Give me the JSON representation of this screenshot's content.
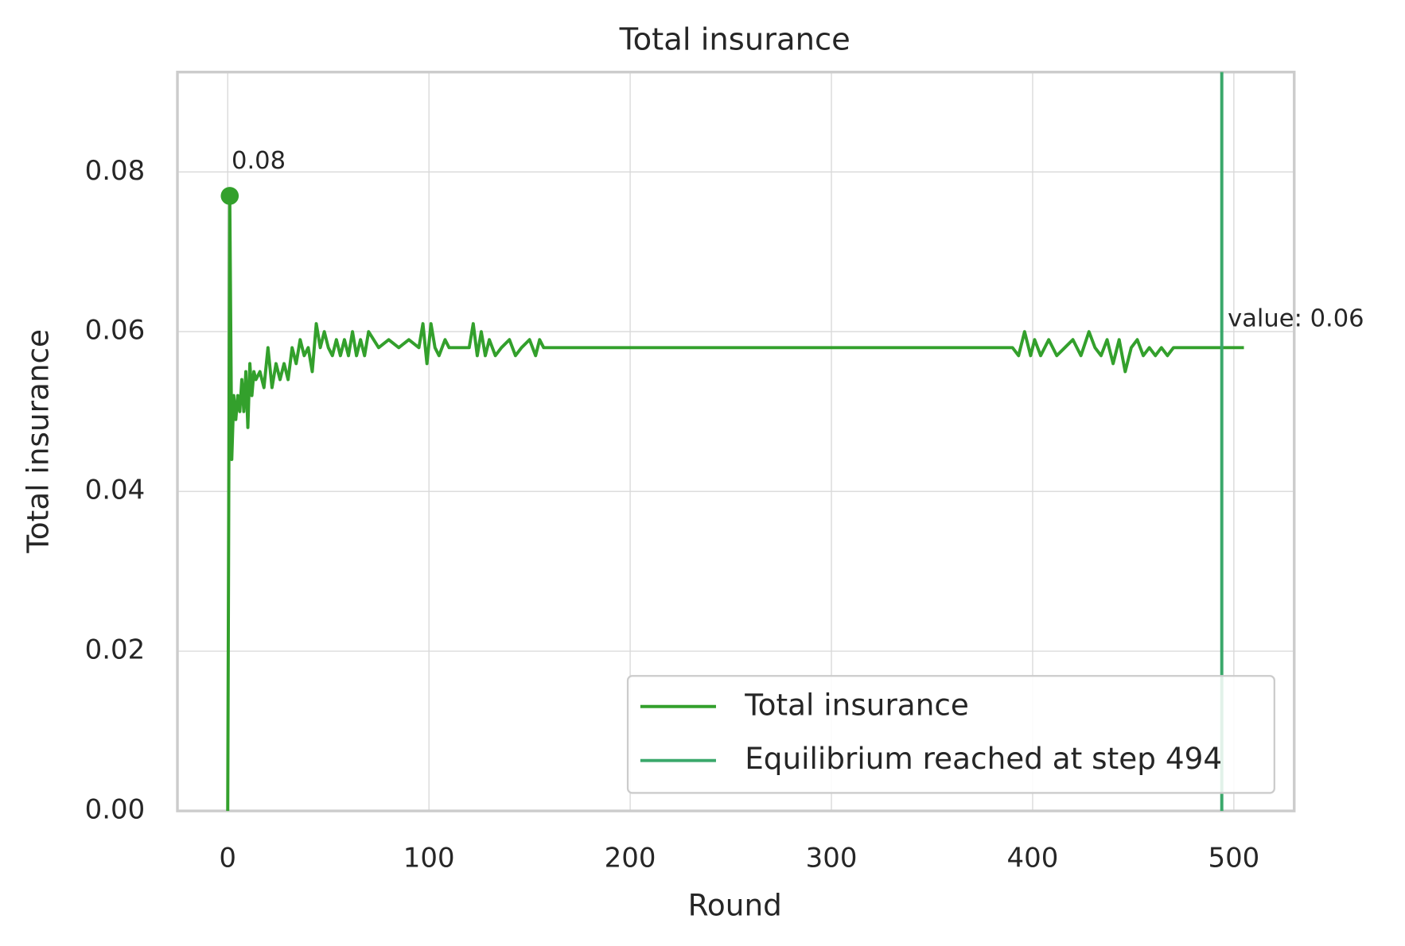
{
  "chart_data": {
    "type": "line",
    "title": "Total insurance",
    "xlabel": "Round",
    "ylabel": "Total insurance",
    "x": [
      0,
      1,
      2,
      3,
      4,
      5,
      6,
      7,
      8,
      9,
      10,
      11,
      12,
      13,
      14,
      16,
      18,
      20,
      22,
      24,
      26,
      28,
      30,
      32,
      34,
      36,
      38,
      40,
      42,
      44,
      46,
      48,
      50,
      52,
      54,
      56,
      58,
      60,
      62,
      64,
      66,
      68,
      70,
      75,
      80,
      85,
      90,
      95,
      97,
      99,
      101,
      103,
      105,
      108,
      110,
      115,
      120,
      122,
      124,
      126,
      128,
      130,
      133,
      136,
      140,
      143,
      146,
      150,
      153,
      155,
      157,
      390,
      393,
      396,
      399,
      401,
      404,
      408,
      412,
      416,
      420,
      424,
      428,
      431,
      434,
      437,
      440,
      443,
      446,
      449,
      452,
      455,
      458,
      461,
      464,
      467,
      470,
      505
    ],
    "series": [
      {
        "name": "Total insurance",
        "color": "#33a02c",
        "values": [
          0,
          0.077,
          0.044,
          0.052,
          0.049,
          0.052,
          0.05,
          0.054,
          0.05,
          0.055,
          0.048,
          0.056,
          0.052,
          0.055,
          0.054,
          0.055,
          0.053,
          0.058,
          0.053,
          0.056,
          0.054,
          0.056,
          0.054,
          0.058,
          0.056,
          0.059,
          0.057,
          0.058,
          0.055,
          0.061,
          0.058,
          0.06,
          0.058,
          0.057,
          0.059,
          0.057,
          0.059,
          0.057,
          0.06,
          0.057,
          0.059,
          0.057,
          0.06,
          0.058,
          0.059,
          0.058,
          0.059,
          0.058,
          0.061,
          0.056,
          0.061,
          0.058,
          0.057,
          0.059,
          0.058,
          0.058,
          0.058,
          0.061,
          0.057,
          0.06,
          0.057,
          0.059,
          0.057,
          0.058,
          0.059,
          0.057,
          0.058,
          0.059,
          0.057,
          0.059,
          0.058,
          0.058,
          0.057,
          0.06,
          0.057,
          0.059,
          0.057,
          0.059,
          0.057,
          0.058,
          0.059,
          0.057,
          0.06,
          0.058,
          0.057,
          0.059,
          0.056,
          0.059,
          0.055,
          0.058,
          0.059,
          0.057,
          0.058,
          0.057,
          0.058,
          0.057,
          0.058,
          0.058
        ]
      }
    ],
    "vline": {
      "x": 494,
      "name": "Equilibrium reached at step 494",
      "color": "#3aa86b"
    },
    "annotations": [
      {
        "text": "0.08",
        "x": 1,
        "y": 0.077
      },
      {
        "text": "value: 0.06",
        "x": 505,
        "y": 0.058
      }
    ],
    "xlim": [
      -25,
      530
    ],
    "ylim": [
      0,
      0.0925
    ],
    "xticks": [
      0,
      100,
      200,
      300,
      400,
      500
    ],
    "yticks": [
      {
        "value": 0,
        "label": "0.00"
      },
      0.02,
      0.04,
      0.06,
      0.08
    ],
    "grid": true,
    "legend": "lower right"
  }
}
